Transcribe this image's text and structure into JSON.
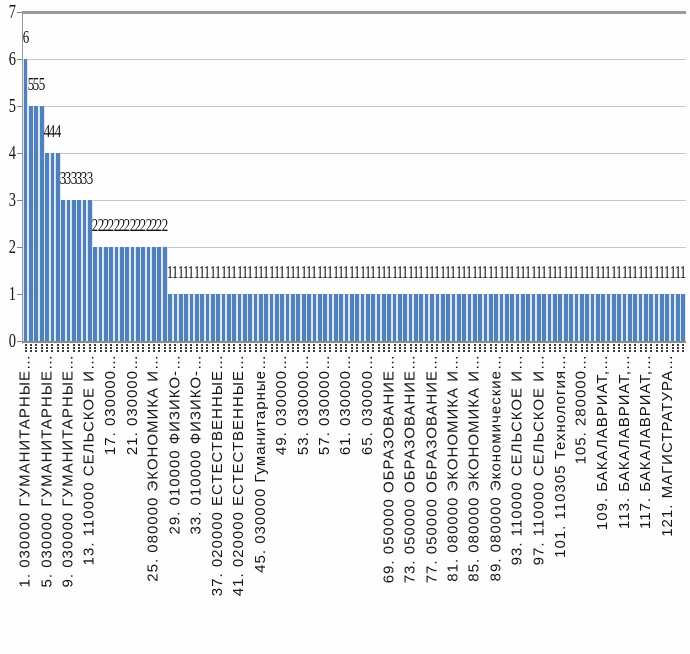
{
  "chart_data": {
    "type": "bar",
    "title": "",
    "xlabel": "",
    "ylabel": "",
    "ylim": [
      0,
      7
    ],
    "y_tick_labels": [
      "0",
      "1",
      "2",
      "3",
      "4",
      "5",
      "6",
      "7"
    ],
    "grid": true,
    "legend": false,
    "bar_color": "#4f81bd",
    "bar_edge_tint": "#d9e3f1",
    "n_bars": 124,
    "data_labels_shown": true,
    "series_rle": [
      {
        "value": 6,
        "count": 1
      },
      {
        "value": 5,
        "count": 3
      },
      {
        "value": 4,
        "count": 3
      },
      {
        "value": 3,
        "count": 6
      },
      {
        "value": 2,
        "count": 14
      },
      {
        "value": 1,
        "count": 97
      }
    ],
    "x_tick_labels": [
      {
        "category": 1,
        "label": "1. 030000 ГУМАНИТАРНЫЕ…"
      },
      {
        "category": 5,
        "label": "5. 030000 ГУМАНИТАРНЫЕ…"
      },
      {
        "category": 9,
        "label": "9. 030000 ГУМАНИТАРНЫЕ…"
      },
      {
        "category": 13,
        "label": "13. 110000 СЕЛЬСКОЕ И…"
      },
      {
        "category": 17,
        "label": "17. 030000…"
      },
      {
        "category": 21,
        "label": "21. 030000…"
      },
      {
        "category": 25,
        "label": "25. 080000 ЭКОНОМИКА И…"
      },
      {
        "category": 29,
        "label": "29. 010000 ФИЗИКО-…"
      },
      {
        "category": 33,
        "label": "33. 010000 ФИЗИКО-…"
      },
      {
        "category": 37,
        "label": "37. 020000 ЕСТЕСТВЕННЫЕ…"
      },
      {
        "category": 41,
        "label": "41. 020000 ЕСТЕСТВЕННЫЕ…"
      },
      {
        "category": 45,
        "label": "45. 030000 Гуманитарные…"
      },
      {
        "category": 49,
        "label": "49. 030000…"
      },
      {
        "category": 53,
        "label": "53. 030000…"
      },
      {
        "category": 57,
        "label": "57. 030000…"
      },
      {
        "category": 61,
        "label": "61. 030000…"
      },
      {
        "category": 65,
        "label": "65. 030000…"
      },
      {
        "category": 69,
        "label": "69. 050000 ОБРАЗОВАНИЕ…"
      },
      {
        "category": 73,
        "label": "73. 050000 ОБРАЗОВАНИЕ…"
      },
      {
        "category": 77,
        "label": "77. 050000 ОБРАЗОВАНИЕ…"
      },
      {
        "category": 81,
        "label": "81. 080000 ЭКОНОМИКА И…"
      },
      {
        "category": 85,
        "label": "85. 080000 ЭКОНОМИКА И…"
      },
      {
        "category": 89,
        "label": "89. 080000 Экономические…"
      },
      {
        "category": 93,
        "label": "93. 110000 СЕЛЬСКОЕ И…"
      },
      {
        "category": 97,
        "label": "97. 110000 СЕЛЬСКОЕ И…"
      },
      {
        "category": 101,
        "label": "101. 110305 Технология…"
      },
      {
        "category": 105,
        "label": "105. 280000…"
      },
      {
        "category": 109,
        "label": "109. БАКАЛАВРИАТ,…"
      },
      {
        "category": 113,
        "label": "113. БАКАЛАВРИАТ,…"
      },
      {
        "category": 117,
        "label": "117. БАКАЛАВРИАТ,…"
      },
      {
        "category": 121,
        "label": "121. МАГИСТРАТУРА…"
      }
    ]
  }
}
